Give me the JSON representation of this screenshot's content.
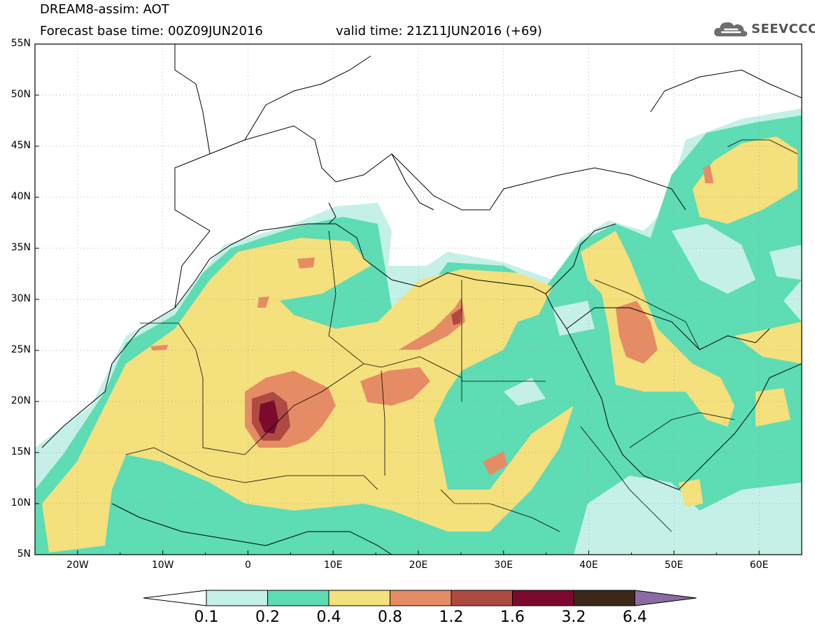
{
  "header": {
    "title": "DREAM8-assim: AOT",
    "base_time": "Forecast base time: 00Z09JUN2016",
    "valid_time": "valid time: 21Z11JUN2016 (+69)"
  },
  "logo": {
    "text": "SEEVCCC",
    "icon": "cloud-icon"
  },
  "map": {
    "lat_labels": [
      "55N",
      "50N",
      "45N",
      "40N",
      "35N",
      "30N",
      "25N",
      "20N",
      "15N",
      "10N",
      "5N"
    ],
    "lon_labels": [
      "20W",
      "10W",
      "0",
      "10E",
      "20E",
      "30E",
      "40E",
      "50E",
      "60E"
    ],
    "extent": {
      "lon_min": -25,
      "lon_max": 65,
      "lat_min": 5,
      "lat_max": 55
    }
  },
  "colorbar": {
    "labels": [
      "0.1",
      "0.2",
      "0.4",
      "0.8",
      "1.2",
      "1.6",
      "3.2",
      "6.4"
    ],
    "colors": {
      "under": "#ffffff",
      "c1": "#c4f0e8",
      "c2": "#5edcb4",
      "c3": "#f4e07c",
      "c4": "#e68c64",
      "c5": "#ae4a42",
      "c6": "#7c0a2e",
      "c7": "#3c2818",
      "over": "#8c6aa4"
    }
  }
}
